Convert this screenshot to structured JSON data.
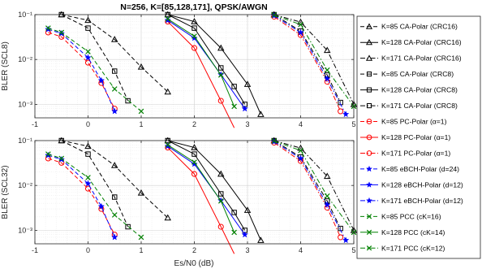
{
  "figure_title": "N=256, K=[85,128,171], QPSK/AWGN",
  "chart_data": {
    "type": "line",
    "title": "N=256, K=[85,128,171], QPSK/AWGN",
    "xlabel": "Es/N0 (dB)",
    "xlim": [
      -1,
      5
    ],
    "x_ticks": [
      "-1",
      "0",
      "1",
      "2",
      "3",
      "4",
      "5"
    ],
    "y_scale": "log",
    "ylim": [
      0.0005,
      0.1
    ],
    "y_ticks": [
      "10⁻³",
      "10⁻²",
      "10⁻¹"
    ],
    "grid": true,
    "legend_placement": "right, outside",
    "legend": [
      {
        "label": "K=85 CA-Polar (CRC16)",
        "color": "#000000",
        "dash": "dash",
        "marker": "triangle"
      },
      {
        "label": "K=128 CA-Polar (CRC16)",
        "color": "#000000",
        "dash": "solid",
        "marker": "triangle"
      },
      {
        "label": "K=171 CA-Polar (CRC16)",
        "color": "#000000",
        "dash": "dashdot",
        "marker": "triangle"
      },
      {
        "label": "K=85 CA-Polar (CRC8)",
        "color": "#000000",
        "dash": "dash",
        "marker": "square"
      },
      {
        "label": "K=128 CA-Polar (CRC8)",
        "color": "#000000",
        "dash": "solid",
        "marker": "square"
      },
      {
        "label": "K=171 CA-Polar (CRC8)",
        "color": "#000000",
        "dash": "dashdot",
        "marker": "square"
      },
      {
        "label": "K=85 PC-Polar (α=1)",
        "color": "#ff0000",
        "dash": "dash",
        "marker": "circle"
      },
      {
        "label": "K=128 PC-Polar (α=1)",
        "color": "#ff0000",
        "dash": "solid",
        "marker": "circle"
      },
      {
        "label": "K=171 PC-Polar (α=1)",
        "color": "#ff0000",
        "dash": "dashdot",
        "marker": "circle"
      },
      {
        "label": "K=85 eBCH-Polar (d=24)",
        "color": "#0000ff",
        "dash": "dash",
        "marker": "star"
      },
      {
        "label": "K=128 eBCH-Polar (d=12)",
        "color": "#0000ff",
        "dash": "solid",
        "marker": "star"
      },
      {
        "label": "K=171 eBCH-Polar (d=12)",
        "color": "#0000ff",
        "dash": "dashdot",
        "marker": "star"
      },
      {
        "label": "K=85 PCC (cK=16)",
        "color": "#008000",
        "dash": "dash",
        "marker": "x"
      },
      {
        "label": "K=128 PCC (cK=14)",
        "color": "#008000",
        "dash": "solid",
        "marker": "x"
      },
      {
        "label": "K=171 PCC (cK=12)",
        "color": "#008000",
        "dash": "dashdot",
        "marker": "x"
      }
    ],
    "panels": [
      {
        "ylabel": "BLER (SCL8)",
        "series": [
          {
            "legend_index": 0,
            "x": [
              -0.5,
              0,
              0.5,
              1,
              1.5
            ],
            "y": [
              0.1,
              0.075,
              0.028,
              0.0068,
              0.0019
            ]
          },
          {
            "legend_index": 1,
            "x": [
              1.5,
              2,
              2.5,
              3,
              3.25
            ],
            "y": [
              0.1,
              0.07,
              0.018,
              0.0028,
              0.0006
            ]
          },
          {
            "legend_index": 2,
            "x": [
              3.5,
              4,
              4.5,
              5
            ],
            "y": [
              0.1,
              0.068,
              0.016,
              0.001
            ]
          },
          {
            "legend_index": 3,
            "x": [
              -0.5,
              0,
              0.5,
              0.75
            ],
            "y": [
              0.1,
              0.05,
              0.0055,
              0.0012
            ]
          },
          {
            "legend_index": 4,
            "x": [
              1.5,
              2,
              2.5,
              2.75,
              2.95
            ],
            "y": [
              0.1,
              0.05,
              0.0065,
              0.0025,
              0.001
            ]
          },
          {
            "legend_index": 5,
            "x": [
              3.5,
              4,
              4.5,
              4.75
            ],
            "y": [
              0.1,
              0.043,
              0.0045,
              0.0011
            ]
          },
          {
            "legend_index": 6,
            "x": [
              -0.75,
              -0.5,
              0,
              0.25,
              0.5
            ],
            "y": [
              0.04,
              0.032,
              0.0085,
              0.003,
              0.0008
            ]
          },
          {
            "legend_index": 7,
            "x": [
              1.5,
              2,
              2.5,
              2.75
            ],
            "y": [
              0.07,
              0.018,
              0.0012,
              0.0003
            ]
          },
          {
            "legend_index": 8,
            "x": [
              3.5,
              4,
              4.5,
              4.75
            ],
            "y": [
              0.09,
              0.035,
              0.0032,
              0.0007
            ]
          },
          {
            "legend_index": 9,
            "x": [
              -0.75,
              -0.5,
              0,
              0.25,
              0.5
            ],
            "y": [
              0.047,
              0.038,
              0.011,
              0.0034,
              0.0007
            ]
          },
          {
            "legend_index": 10,
            "x": [
              1.5,
              2,
              2.5,
              2.95
            ],
            "y": [
              0.075,
              0.03,
              0.0046,
              0.0008
            ]
          },
          {
            "legend_index": 11,
            "x": [
              3.5,
              4,
              4.5,
              4.85
            ],
            "y": [
              0.095,
              0.04,
              0.0037,
              0.0006
            ]
          },
          {
            "legend_index": 12,
            "x": [
              -0.75,
              -0.5,
              0,
              0.5,
              1
            ],
            "y": [
              0.05,
              0.04,
              0.015,
              0.0022,
              0.0007
            ]
          },
          {
            "legend_index": 13,
            "x": [
              1.5,
              2,
              2.5,
              2.75
            ],
            "y": [
              0.08,
              0.033,
              0.0045,
              0.0009
            ]
          },
          {
            "legend_index": 14,
            "x": [
              3.5,
              4,
              4.5,
              5
            ],
            "y": [
              0.098,
              0.06,
              0.0058,
              0.0009
            ]
          }
        ]
      },
      {
        "ylabel": "BLER (SCL32)",
        "series": [
          {
            "legend_index": 0,
            "x": [
              -0.5,
              0,
              0.5,
              1,
              1.5
            ],
            "y": [
              0.1,
              0.075,
              0.028,
              0.0068,
              0.0019
            ]
          },
          {
            "legend_index": 1,
            "x": [
              1.5,
              2,
              2.5,
              3,
              3.25
            ],
            "y": [
              0.1,
              0.07,
              0.018,
              0.0028,
              0.0006
            ]
          },
          {
            "legend_index": 2,
            "x": [
              3.5,
              4,
              4.5,
              5
            ],
            "y": [
              0.1,
              0.068,
              0.016,
              0.001
            ]
          },
          {
            "legend_index": 3,
            "x": [
              -0.5,
              0,
              0.5,
              0.75
            ],
            "y": [
              0.1,
              0.05,
              0.0055,
              0.0012
            ]
          },
          {
            "legend_index": 4,
            "x": [
              1.5,
              2,
              2.5,
              2.75,
              2.95
            ],
            "y": [
              0.1,
              0.05,
              0.0065,
              0.0025,
              0.001
            ]
          },
          {
            "legend_index": 5,
            "x": [
              3.5,
              4,
              4.5,
              4.75
            ],
            "y": [
              0.1,
              0.043,
              0.0045,
              0.0011
            ]
          },
          {
            "legend_index": 6,
            "x": [
              -0.75,
              -0.5,
              0,
              0.25,
              0.5
            ],
            "y": [
              0.04,
              0.032,
              0.0085,
              0.003,
              0.0008
            ]
          },
          {
            "legend_index": 7,
            "x": [
              1.5,
              2,
              2.5,
              2.75
            ],
            "y": [
              0.07,
              0.018,
              0.0012,
              0.0003
            ]
          },
          {
            "legend_index": 8,
            "x": [
              3.5,
              4,
              4.5,
              4.75
            ],
            "y": [
              0.09,
              0.035,
              0.0032,
              0.0007
            ]
          },
          {
            "legend_index": 9,
            "x": [
              -0.75,
              -0.5,
              0,
              0.25,
              0.5
            ],
            "y": [
              0.047,
              0.038,
              0.011,
              0.0034,
              0.0007
            ]
          },
          {
            "legend_index": 10,
            "x": [
              1.5,
              2,
              2.5,
              2.95
            ],
            "y": [
              0.075,
              0.03,
              0.0046,
              0.0008
            ]
          },
          {
            "legend_index": 11,
            "x": [
              3.5,
              4,
              4.5,
              4.85
            ],
            "y": [
              0.095,
              0.04,
              0.0037,
              0.0006
            ]
          },
          {
            "legend_index": 12,
            "x": [
              -0.75,
              -0.5,
              0,
              0.5,
              1
            ],
            "y": [
              0.05,
              0.04,
              0.015,
              0.0022,
              0.0007
            ]
          },
          {
            "legend_index": 13,
            "x": [
              1.5,
              2,
              2.5,
              2.75
            ],
            "y": [
              0.08,
              0.033,
              0.0045,
              0.0009
            ]
          },
          {
            "legend_index": 14,
            "x": [
              3.5,
              4,
              4.5,
              5
            ],
            "y": [
              0.098,
              0.06,
              0.0058,
              0.0009
            ]
          }
        ]
      }
    ]
  }
}
